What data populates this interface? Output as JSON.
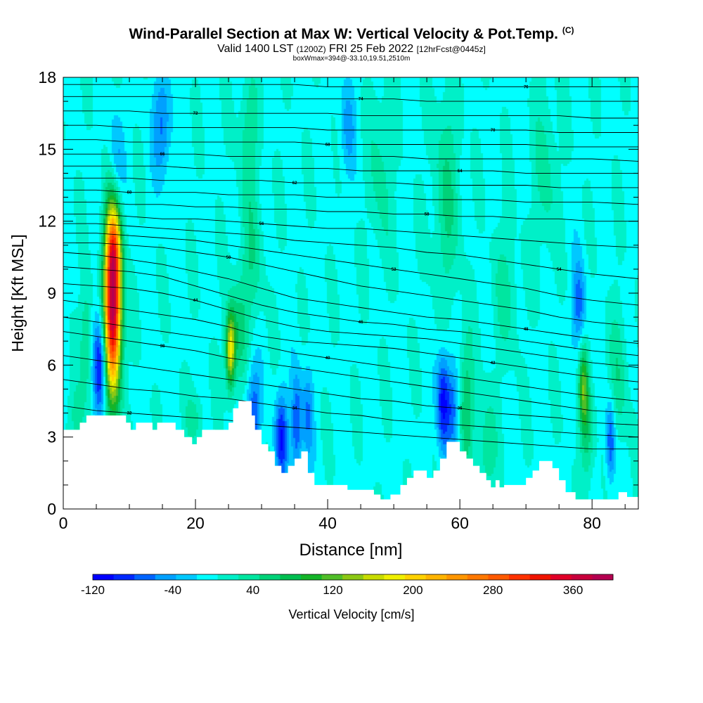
{
  "header": {
    "title": "Wind-Parallel Section at Max W: Vertical Velocity & Pot.Temp.",
    "copyright": "(C)",
    "valid_prefix": "Valid 1400 LST",
    "valid_utc": "(1200Z)",
    "valid_date": "FRI 25 Feb 2022",
    "forecast": "[12hrFcst@0445z]",
    "boxwmax": "boxWmax=394@-33.10,19.51,2510m"
  },
  "chart_data": {
    "type": "heatmap",
    "xlabel": "Distance [nm]",
    "ylabel": "Height [Kft MSL]",
    "xlim": [
      0,
      87
    ],
    "ylim": [
      0,
      18
    ],
    "x_ticks": [
      "0",
      "20",
      "40",
      "60",
      "80"
    ],
    "x_tick_values": [
      0,
      20,
      40,
      60,
      80
    ],
    "y_ticks": [
      "0",
      "3",
      "6",
      "9",
      "12",
      "15",
      "18"
    ],
    "y_tick_values": [
      0,
      3,
      6,
      9,
      12,
      15,
      18
    ],
    "colorbar": {
      "label": "Vertical Velocity [cm/s]",
      "range": [
        -120,
        400
      ],
      "tick_labels": [
        "-120",
        "-40",
        "40",
        "120",
        "200",
        "280",
        "360"
      ],
      "tick_values": [
        -120,
        -40,
        40,
        120,
        200,
        280,
        360
      ],
      "colors": [
        "#0000ff",
        "#0028ff",
        "#0064ff",
        "#00a0ff",
        "#00c8ff",
        "#00ffff",
        "#00f0c8",
        "#00e6a0",
        "#00d278",
        "#00be50",
        "#14b428",
        "#50be28",
        "#8cc814",
        "#c8dc00",
        "#f0f000",
        "#ffd200",
        "#ffb400",
        "#ff9600",
        "#ff7800",
        "#ff5a00",
        "#ff3200",
        "#f01400",
        "#e10028",
        "#c8003c",
        "#b40050"
      ]
    },
    "vertical_velocity": {
      "background_cm_s": 0,
      "features": [
        {
          "x": 7.5,
          "z": 8.5,
          "w_cm_s": 394,
          "sigma_x": 0.9,
          "sigma_z": 2.6
        },
        {
          "x": 7.6,
          "z": 11.0,
          "w_cm_s": 90,
          "sigma_x": 0.8,
          "sigma_z": 1.2
        },
        {
          "x": 5.6,
          "z": 6.0,
          "w_cm_s": -120,
          "sigma_x": 0.7,
          "sigma_z": 1.5
        },
        {
          "x": 3.5,
          "z": 7.0,
          "w_cm_s": 55,
          "sigma_x": 0.6,
          "sigma_z": 1.6
        },
        {
          "x": 25.3,
          "z": 6.6,
          "w_cm_s": 175,
          "sigma_x": 0.5,
          "sigma_z": 1.1
        },
        {
          "x": 26.5,
          "z": 7.5,
          "w_cm_s": 50,
          "sigma_x": 1.0,
          "sigma_z": 1.5
        },
        {
          "x": 28.5,
          "z": 10.5,
          "w_cm_s": 40,
          "sigma_x": 1.2,
          "sigma_z": 2.0
        },
        {
          "x": 28.8,
          "z": 4.0,
          "w_cm_s": -75,
          "sigma_x": 0.8,
          "sigma_z": 1.4
        },
        {
          "x": 33.0,
          "z": 3.0,
          "w_cm_s": -95,
          "sigma_x": 0.7,
          "sigma_z": 1.3
        },
        {
          "x": 35.3,
          "z": 3.5,
          "w_cm_s": -85,
          "sigma_x": 0.6,
          "sigma_z": 1.5
        },
        {
          "x": 37.0,
          "z": 4.0,
          "w_cm_s": -55,
          "sigma_x": 0.6,
          "sigma_z": 1.4
        },
        {
          "x": 15.0,
          "z": 16.0,
          "w_cm_s": -65,
          "sigma_x": 1.0,
          "sigma_z": 1.5
        },
        {
          "x": 8.0,
          "z": 14.5,
          "w_cm_s": -50,
          "sigma_x": 0.8,
          "sigma_z": 1.5
        },
        {
          "x": 28.0,
          "z": 15.5,
          "w_cm_s": 45,
          "sigma_x": 1.0,
          "sigma_z": 1.8
        },
        {
          "x": 48.0,
          "z": 14.0,
          "w_cm_s": 35,
          "sigma_x": 1.2,
          "sigma_z": 2.5
        },
        {
          "x": 43.0,
          "z": 16.0,
          "w_cm_s": -40,
          "sigma_x": 0.9,
          "sigma_z": 1.5
        },
        {
          "x": 57.5,
          "z": 4.5,
          "w_cm_s": -110,
          "sigma_x": 0.7,
          "sigma_z": 1.5
        },
        {
          "x": 59.0,
          "z": 4.2,
          "w_cm_s": -60,
          "sigma_x": 0.6,
          "sigma_z": 1.3
        },
        {
          "x": 61.0,
          "z": 4.5,
          "w_cm_s": 60,
          "sigma_x": 0.8,
          "sigma_z": 2.0
        },
        {
          "x": 58.0,
          "z": 13.0,
          "w_cm_s": 45,
          "sigma_x": 1.5,
          "sigma_z": 3.0
        },
        {
          "x": 64.0,
          "z": 2.5,
          "w_cm_s": 45,
          "sigma_x": 1.0,
          "sigma_z": 1.5
        },
        {
          "x": 78.7,
          "z": 5.0,
          "w_cm_s": 110,
          "sigma_x": 0.5,
          "sigma_z": 1.2
        },
        {
          "x": 79.3,
          "z": 3.0,
          "w_cm_s": 50,
          "sigma_x": 0.7,
          "sigma_z": 1.5
        },
        {
          "x": 78.0,
          "z": 8.5,
          "w_cm_s": -70,
          "sigma_x": 0.7,
          "sigma_z": 1.3
        },
        {
          "x": 82.8,
          "z": 2.8,
          "w_cm_s": -85,
          "sigma_x": 0.5,
          "sigma_z": 1.2
        },
        {
          "x": 84.0,
          "z": 5.5,
          "w_cm_s": 40,
          "sigma_x": 1.0,
          "sigma_z": 2.0
        },
        {
          "x": 73.0,
          "z": 14.0,
          "w_cm_s": 35,
          "sigma_x": 1.2,
          "sigma_z": 2.5
        },
        {
          "x": 67.0,
          "z": 9.0,
          "w_cm_s": 30,
          "sigma_x": 1.5,
          "sigma_z": 2.0
        },
        {
          "x": 20.0,
          "z": 3.8,
          "w_cm_s": 35,
          "sigma_x": 1.0,
          "sigma_z": 0.8
        },
        {
          "x": 2.0,
          "z": 3.8,
          "w_cm_s": 30,
          "sigma_x": 1.0,
          "sigma_z": 1.0
        }
      ]
    },
    "terrain_kft": {
      "x": [
        0,
        2.5,
        2.5,
        3.5,
        3.5,
        6,
        6,
        9.5,
        9.5,
        10.2,
        10.2,
        11,
        11,
        13.5,
        13.5,
        14.2,
        14.2,
        15,
        15,
        17,
        17,
        18.3,
        18.3,
        19.5,
        19.5,
        20.2,
        20.2,
        21,
        21,
        22.5,
        22.5,
        25,
        25,
        25.7,
        25.7,
        26.5,
        26.5,
        28.5,
        28.5,
        29,
        29,
        30,
        30,
        31,
        31,
        32,
        32,
        33,
        33,
        34,
        34,
        35,
        35,
        36,
        36,
        37,
        37,
        38,
        38,
        43,
        43,
        47,
        47,
        48,
        48,
        49.5,
        49.5,
        51,
        51,
        52,
        52,
        53,
        53,
        55,
        55,
        56,
        56,
        57,
        57,
        58,
        58,
        60,
        60,
        61,
        61,
        62,
        62,
        63,
        63,
        64,
        64,
        64.7,
        64.7,
        65.4,
        65.4,
        66,
        66,
        66.7,
        66.7,
        70,
        70,
        71,
        71,
        72,
        72,
        74,
        74,
        75,
        75,
        76,
        76,
        77.5,
        77.5,
        80,
        80,
        84,
        84,
        85.3,
        85.3,
        87
      ],
      "z": [
        3.3,
        3.3,
        3.6,
        3.6,
        3.9,
        3.9,
        3.9,
        3.9,
        3.6,
        3.6,
        3.3,
        3.3,
        3.6,
        3.6,
        3.3,
        3.3,
        3.6,
        3.6,
        3.6,
        3.6,
        3.3,
        3.3,
        3.0,
        3.0,
        2.7,
        2.7,
        3.0,
        3.0,
        3.3,
        3.3,
        3.3,
        3.3,
        3.6,
        3.6,
        4.2,
        4.2,
        4.5,
        4.5,
        3.9,
        3.9,
        3.3,
        3.3,
        2.7,
        2.7,
        2.4,
        2.4,
        1.8,
        1.8,
        1.5,
        1.5,
        1.8,
        1.8,
        2.1,
        2.1,
        2.4,
        2.4,
        1.5,
        1.5,
        1.0,
        1.0,
        0.8,
        0.8,
        0.6,
        0.6,
        0.4,
        0.4,
        0.6,
        0.6,
        1.0,
        1.0,
        1.3,
        1.3,
        1.6,
        1.6,
        1.3,
        1.3,
        1.6,
        1.6,
        2.1,
        2.1,
        2.8,
        2.8,
        2.4,
        2.4,
        2.1,
        2.1,
        1.8,
        1.8,
        1.5,
        1.5,
        1.2,
        1.2,
        0.9,
        0.9,
        1.2,
        1.2,
        0.9,
        0.9,
        1.0,
        1.0,
        1.3,
        1.3,
        1.6,
        1.6,
        2.0,
        2.0,
        1.7,
        1.7,
        1.2,
        1.2,
        0.7,
        0.7,
        0.4,
        0.4,
        0.4,
        0.4,
        0.7,
        0.7,
        0.5,
        0.5
      ]
    },
    "isentropes": [
      {
        "label": "32",
        "z": [
          4.3,
          4.1,
          4.0,
          3.9,
          3.8,
          3.7,
          3.5,
          3.4,
          3.3,
          3.2,
          3.1,
          3.0,
          2.9,
          2.8,
          2.7,
          2.6,
          2.5,
          2.5
        ]
      },
      {
        "label": "34",
        "z": [
          5.4,
          5.2,
          5.0,
          4.9,
          4.7,
          4.6,
          4.4,
          4.2,
          4.0,
          3.9,
          3.7,
          3.6,
          3.5,
          3.4,
          3.3,
          3.2,
          3.1,
          3.0
        ]
      },
      {
        "label": "36",
        "z": [
          6.4,
          6.2,
          6.0,
          5.8,
          5.6,
          5.4,
          5.2,
          5.0,
          4.8,
          4.6,
          4.5,
          4.3,
          4.2,
          4.0,
          3.9,
          3.8,
          3.6,
          3.5
        ]
      },
      {
        "label": "38",
        "z": [
          7.4,
          7.2,
          7.0,
          6.8,
          6.6,
          6.3,
          6.1,
          5.9,
          5.7,
          5.5,
          5.3,
          5.1,
          4.9,
          4.7,
          4.5,
          4.3,
          4.1,
          4.0
        ]
      },
      {
        "label": "40",
        "z": [
          8.0,
          7.8,
          7.6,
          7.4,
          7.2,
          7.0,
          6.8,
          6.5,
          6.3,
          6.1,
          5.9,
          5.7,
          5.5,
          5.3,
          5.1,
          4.9,
          4.7,
          4.5
        ]
      },
      {
        "label": "42",
        "z": [
          8.7,
          8.5,
          8.3,
          8.1,
          7.9,
          7.6,
          7.2,
          7.0,
          6.9,
          6.8,
          6.7,
          6.5,
          6.3,
          6.1,
          5.9,
          5.7,
          5.5,
          5.3
        ]
      },
      {
        "label": "44",
        "z": [
          9.4,
          9.3,
          9.2,
          9.0,
          8.7,
          8.3,
          7.9,
          7.6,
          7.4,
          7.3,
          7.2,
          7.1,
          6.9,
          6.7,
          6.5,
          6.3,
          6.1,
          5.9
        ]
      },
      {
        "label": "46",
        "z": [
          10.1,
          10.0,
          9.9,
          9.7,
          9.3,
          8.9,
          8.5,
          8.2,
          8.0,
          7.8,
          7.7,
          7.5,
          7.4,
          7.2,
          7.0,
          6.8,
          6.6,
          6.4
        ]
      },
      {
        "label": "48",
        "z": [
          10.7,
          10.6,
          10.4,
          10.2,
          9.9,
          9.6,
          9.2,
          8.8,
          8.6,
          8.4,
          8.2,
          8.0,
          7.9,
          7.7,
          7.5,
          7.3,
          7.1,
          6.9
        ]
      },
      {
        "label": "50",
        "z": [
          11.1,
          11.1,
          11.0,
          10.9,
          10.7,
          10.5,
          10.2,
          9.9,
          9.6,
          9.3,
          9.1,
          8.9,
          8.7,
          8.5,
          8.3,
          8.0,
          7.8,
          7.6
        ]
      },
      {
        "label": "52",
        "z": [
          11.5,
          11.5,
          11.4,
          11.3,
          11.2,
          11.0,
          10.8,
          10.6,
          10.4,
          10.2,
          10.0,
          9.8,
          9.6,
          9.4,
          9.2,
          8.9,
          8.7,
          8.5
        ]
      },
      {
        "label": "54",
        "z": [
          11.9,
          11.9,
          11.8,
          11.7,
          11.6,
          11.5,
          11.4,
          11.2,
          11.1,
          11.0,
          10.9,
          10.7,
          10.6,
          10.4,
          10.2,
          10.0,
          9.8,
          9.6
        ]
      },
      {
        "label": "56",
        "z": [
          12.3,
          12.3,
          12.2,
          12.1,
          12.1,
          12.0,
          11.9,
          11.8,
          11.7,
          11.7,
          11.6,
          11.5,
          11.4,
          11.3,
          11.2,
          11.1,
          11.0,
          10.9
        ]
      },
      {
        "label": "58",
        "z": [
          12.8,
          12.8,
          12.7,
          12.7,
          12.6,
          12.6,
          12.5,
          12.5,
          12.4,
          12.4,
          12.3,
          12.3,
          12.2,
          12.2,
          12.1,
          12.1,
          12.0,
          12.0
        ]
      },
      {
        "label": "60",
        "z": [
          13.3,
          13.3,
          13.2,
          13.2,
          13.2,
          13.1,
          13.1,
          13.1,
          13.0,
          13.0,
          13.0,
          12.9,
          12.9,
          12.9,
          12.8,
          12.8,
          12.8,
          12.7
        ]
      },
      {
        "label": "62",
        "z": [
          13.8,
          13.8,
          13.8,
          13.7,
          13.7,
          13.7,
          13.7,
          13.6,
          13.6,
          13.6,
          13.6,
          13.5,
          13.5,
          13.5,
          13.5,
          13.4,
          13.4,
          13.4
        ]
      },
      {
        "label": "64",
        "z": [
          14.3,
          14.3,
          14.3,
          14.3,
          14.2,
          14.2,
          14.2,
          14.2,
          14.2,
          14.1,
          14.1,
          14.1,
          14.1,
          14.1,
          14.0,
          14.0,
          14.0,
          14.0
        ]
      },
      {
        "label": "66",
        "z": [
          14.8,
          14.8,
          14.8,
          14.8,
          14.8,
          14.7,
          14.7,
          14.7,
          14.7,
          14.7,
          14.7,
          14.6,
          14.6,
          14.6,
          14.6,
          14.6,
          14.6,
          14.5
        ]
      },
      {
        "label": "68",
        "z": [
          15.4,
          15.4,
          15.3,
          15.3,
          15.3,
          15.3,
          15.3,
          15.3,
          15.2,
          15.2,
          15.2,
          15.2,
          15.2,
          15.2,
          15.2,
          15.1,
          15.1,
          15.1
        ]
      },
      {
        "label": "70",
        "z": [
          16.0,
          16.0,
          15.9,
          15.9,
          15.9,
          15.9,
          15.9,
          15.9,
          15.8,
          15.8,
          15.8,
          15.8,
          15.8,
          15.8,
          15.8,
          15.7,
          15.7,
          15.7
        ]
      },
      {
        "label": "72",
        "z": [
          16.6,
          16.6,
          16.6,
          16.5,
          16.5,
          16.5,
          16.5,
          16.5,
          16.5,
          16.4,
          16.4,
          16.4,
          16.4,
          16.4,
          16.4,
          16.4,
          16.3,
          16.3
        ]
      },
      {
        "label": "74",
        "z": [
          17.2,
          17.2,
          17.2,
          17.2,
          17.1,
          17.1,
          17.1,
          17.1,
          17.1,
          17.1,
          17.1,
          17.0,
          17.0,
          17.0,
          17.0,
          17.0,
          17.0,
          17.0
        ]
      },
      {
        "label": "76",
        "z": [
          17.7,
          17.7,
          17.7,
          17.7,
          17.7,
          17.7,
          17.7,
          17.7,
          17.6,
          17.6,
          17.6,
          17.6,
          17.6,
          17.6,
          17.6,
          17.6,
          17.6,
          17.6
        ]
      }
    ],
    "isentrope_x": [
      0,
      5,
      10,
      15,
      20,
      25,
      30,
      35,
      40,
      45,
      50,
      55,
      60,
      65,
      70,
      75,
      80,
      87
    ]
  }
}
